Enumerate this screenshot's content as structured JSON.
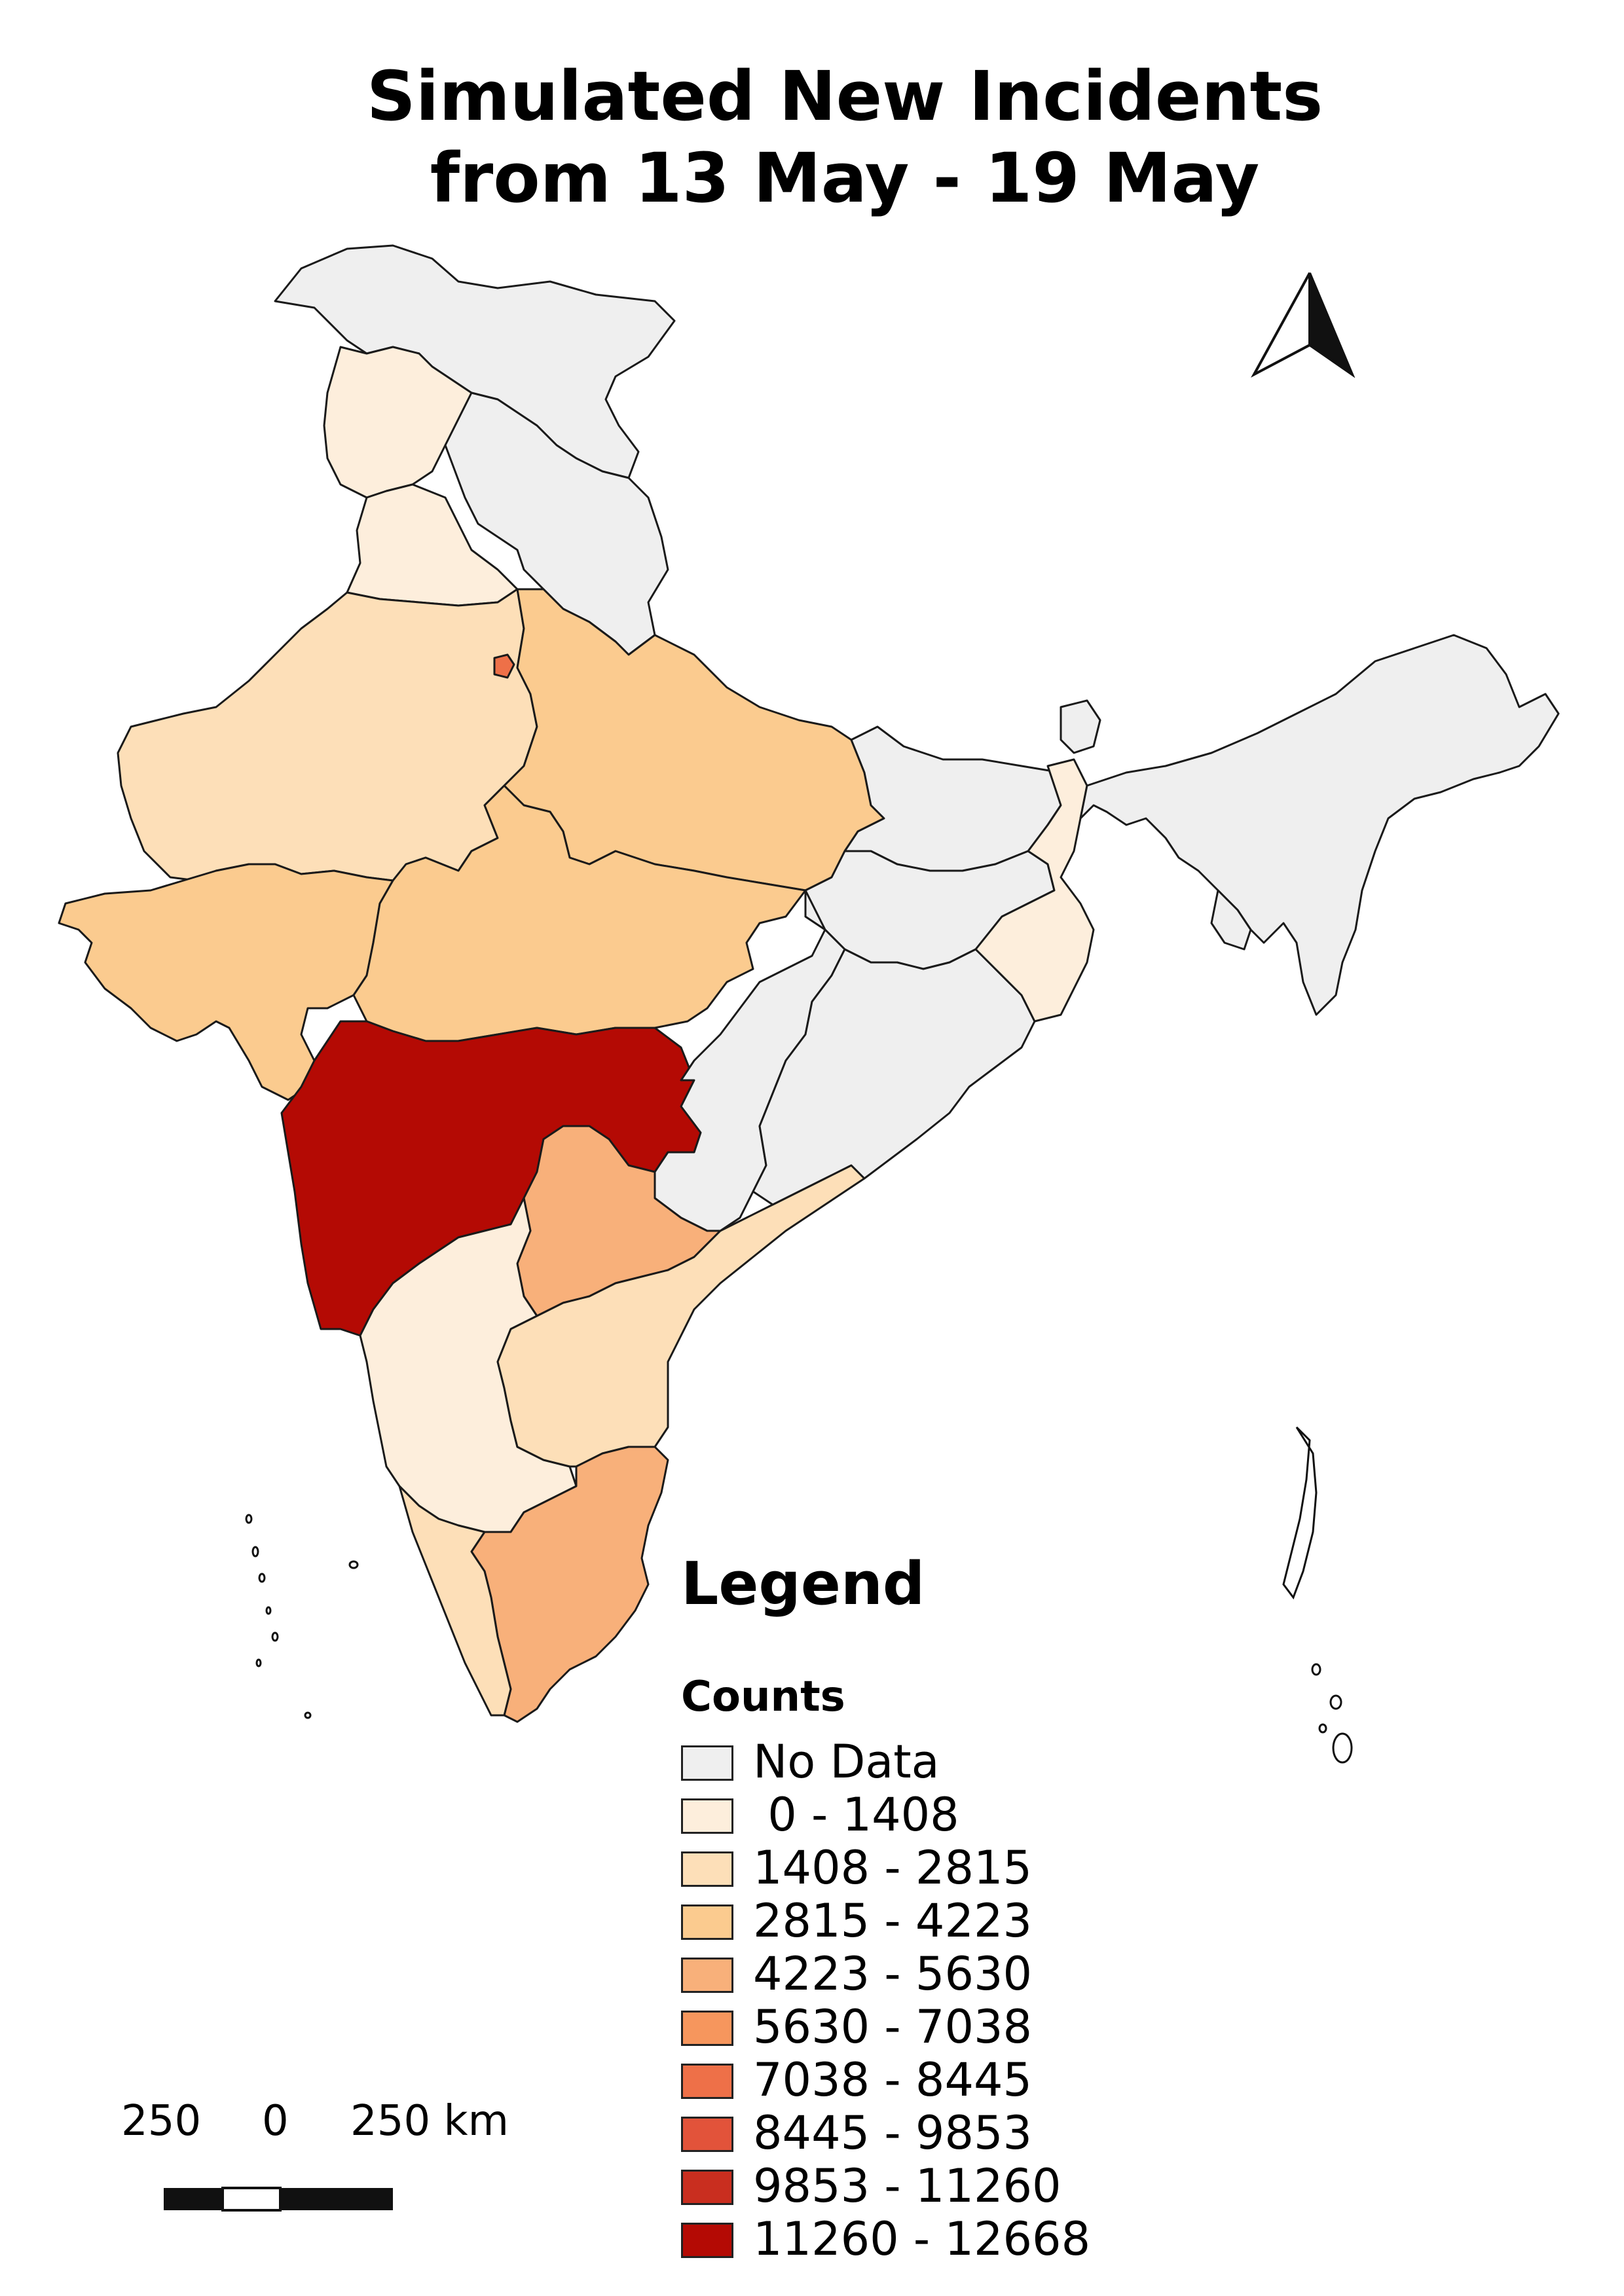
{
  "title": {
    "line1": "Simulated New Incidents",
    "line2": "from 13 May - 19 May"
  },
  "legend": {
    "title": "Legend",
    "subtitle": "Counts",
    "items": [
      {
        "label": "No Data",
        "color": "#efefef"
      },
      {
        "label": " 0 - 1408",
        "color": "#fdeedc"
      },
      {
        "label": "1408 - 2815",
        "color": "#fddfb8"
      },
      {
        "label": "2815 - 4223",
        "color": "#fbcb8f"
      },
      {
        "label": "4223 - 5630",
        "color": "#f8b07a"
      },
      {
        "label": "5630 - 7038",
        "color": "#f6965d"
      },
      {
        "label": "7038 - 8445",
        "color": "#ee7048"
      },
      {
        "label": "8445 - 9853",
        "color": "#e2533a"
      },
      {
        "label": "9853 - 11260",
        "color": "#c92e1f"
      },
      {
        "label": "11260 - 12668",
        "color": "#b40a04"
      }
    ]
  },
  "scale": {
    "left": "250",
    "mid": "0",
    "right": "250 km"
  },
  "region_values": {
    "north_west_regions": "0 - 1408",
    "rajasthan": "1408 - 2815",
    "gujarat": "2815 - 4223",
    "madhya_pradesh": "2815 - 4223",
    "uttar_pradesh": "2815 - 4223",
    "delhi": "7038 - 8445",
    "maharashtra": "11260 - 12668",
    "telangana": "4223 - 5630",
    "karnataka": "0 - 1408",
    "andhra_pradesh": "1408 - 2815",
    "tamil_nadu": "4223 - 5630",
    "kerala": "1408 - 2815",
    "west_bengal": "0 - 1408",
    "eastern_and_north_eastern_regions": "No Data"
  }
}
